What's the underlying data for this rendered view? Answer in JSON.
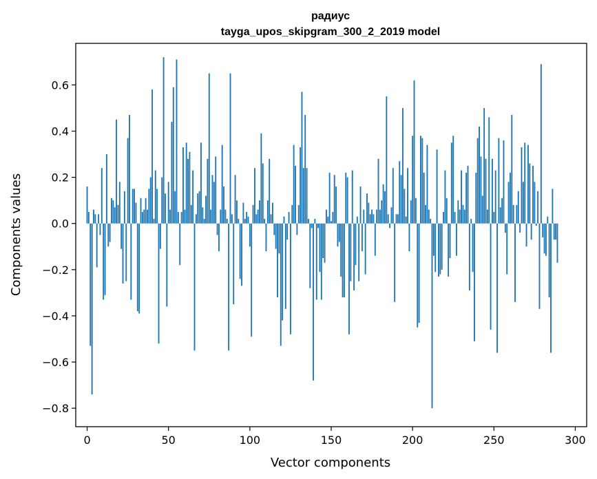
{
  "chart_data": {
    "type": "bar",
    "title": "радиус",
    "subtitle": "tayga_upos_skipgram_300_2_2019 model",
    "xlabel": "Vector components",
    "ylabel": "Components values",
    "xlim": [
      -7,
      307
    ],
    "ylim": [
      -0.88,
      0.78
    ],
    "xticks": [
      0,
      50,
      100,
      150,
      200,
      250,
      300
    ],
    "xtick_labels": [
      "0",
      "50",
      "100",
      "150",
      "200",
      "250",
      "300"
    ],
    "yticks": [
      -0.8,
      -0.6,
      -0.4,
      -0.2,
      0.0,
      0.2,
      0.4,
      0.6
    ],
    "ytick_labels": [
      "−0.8",
      "−0.6",
      "−0.4",
      "−0.2",
      "0.0",
      "0.2",
      "0.4",
      "0.6"
    ],
    "bar_color": "#1f77b4",
    "values": [
      0.16,
      0.05,
      -0.53,
      -0.74,
      0.06,
      0.04,
      -0.19,
      0.04,
      -0.05,
      0.24,
      -0.33,
      -0.31,
      0.3,
      -0.1,
      -0.08,
      0.11,
      0.1,
      0.07,
      0.45,
      0.08,
      0.18,
      -0.11,
      -0.26,
      0.14,
      -0.25,
      0.37,
      0.47,
      -0.33,
      0.15,
      0.15,
      0.09,
      -0.38,
      -0.39,
      0.11,
      0.05,
      0.06,
      0.11,
      0.06,
      0.15,
      0.2,
      0.58,
      0.02,
      0.23,
      0.15,
      -0.52,
      -0.11,
      0.2,
      0.72,
      0.13,
      -0.36,
      0.18,
      0.06,
      0.44,
      0.59,
      0.14,
      0.71,
      0.05,
      -0.18,
      0.05,
      0.33,
      0.06,
      0.35,
      0.28,
      0.31,
      0.08,
      0.23,
      -0.55,
      0.04,
      0.13,
      0.14,
      0.35,
      0.07,
      0.02,
      0.12,
      0.28,
      0.65,
      0.06,
      0.21,
      0.18,
      0.29,
      -0.05,
      -0.12,
      0.06,
      0.34,
      0.16,
      0.06,
      0.02,
      -0.55,
      0.65,
      0.04,
      -0.35,
      0.21,
      0.1,
      0.02,
      -0.24,
      -0.27,
      0.09,
      0.02,
      0.05,
      0.03,
      -0.1,
      -0.49,
      0.08,
      0.24,
      0.04,
      0.06,
      0.1,
      0.39,
      0.26,
      0.02,
      -0.12,
      0.1,
      0.28,
      0.04,
      0.09,
      -0.05,
      -0.11,
      -0.32,
      -0.13,
      -0.53,
      -0.42,
      0.03,
      -0.37,
      -0.07,
      0.05,
      -0.48,
      0.08,
      0.34,
      0.25,
      -0.05,
      0.08,
      0.33,
      0.57,
      0.24,
      0.47,
      0.24,
      0.02,
      -0.28,
      -0.02,
      -0.68,
      0.02,
      -0.33,
      -0.02,
      -0.21,
      -0.33,
      -0.15,
      -0.17,
      0.06,
      0.03,
      0.22,
      0.01,
      0.05,
      0.21,
      0.16,
      -0.1,
      -0.08,
      -0.23,
      -0.32,
      -0.32,
      0.22,
      0.2,
      -0.48,
      -0.25,
      0.23,
      -0.29,
      -0.18,
      0.03,
      -0.25,
      0.16,
      -0.12,
      0.06,
      -0.22,
      0.13,
      0.09,
      0.04,
      0.06,
      0.04,
      -0.14,
      0.06,
      0.28,
      0.06,
      0.1,
      0.17,
      0.14,
      0.55,
      0.04,
      -0.02,
      0.07,
      0.24,
      -0.34,
      0.04,
      0.04,
      0.27,
      0.21,
      0.5,
      0.15,
      0.03,
      0.24,
      -0.12,
      0.1,
      0.38,
      0.62,
      0.11,
      -0.45,
      -0.43,
      0.38,
      0.37,
      0.22,
      0.08,
      0.34,
      0.06,
      0.02,
      -0.8,
      -0.14,
      -0.21,
      0.32,
      -0.23,
      -0.22,
      -0.2,
      0.05,
      0.23,
      0.11,
      -0.23,
      -0.15,
      0.35,
      0.38,
      0.05,
      -0.14,
      0.1,
      0.06,
      0.23,
      0.08,
      0.06,
      0.22,
      0.25,
      -0.29,
      0.02,
      -0.21,
      -0.51,
      0.22,
      0.37,
      0.42,
      0.29,
      0.12,
      0.5,
      0.28,
      0.06,
      0.46,
      -0.46,
      0.28,
      0.05,
      0.23,
      -0.56,
      0.37,
      0.07,
      0.11,
      0.36,
      -0.04,
      -0.22,
      0.18,
      0.22,
      0.47,
      0.08,
      -0.34,
      0.08,
      0.14,
      -0.04,
      0.33,
      0.18,
      0.35,
      -0.1,
      0.34,
      0.26,
      -0.07,
      0.25,
      0.18,
      -0.01,
      0.14,
      -0.37,
      0.69,
      -0.06,
      -0.13,
      -0.14,
      0.03,
      -0.32,
      -0.56,
      0.15,
      -0.07,
      -0.07,
      -0.17
    ]
  }
}
